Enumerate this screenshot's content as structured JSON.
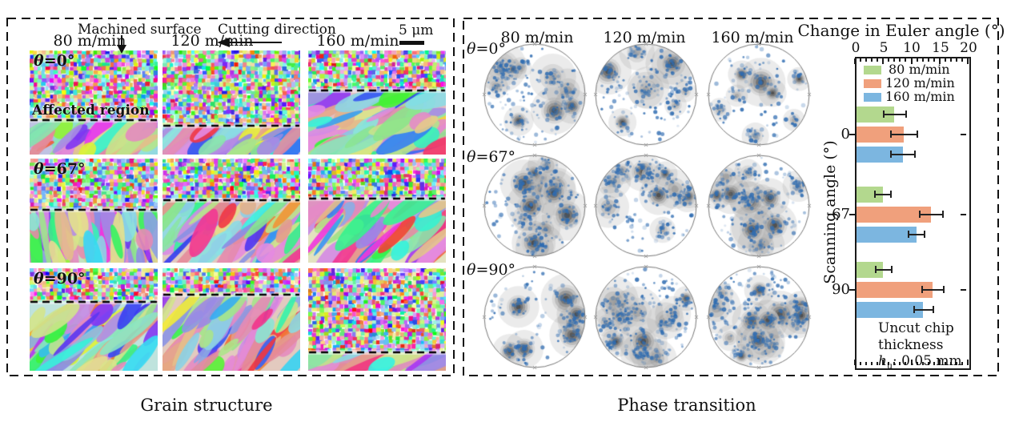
{
  "grain_panel": {
    "caption": "Grain structure",
    "machined_surface_label": "Machined surface",
    "cutting_direction_label": "Cutting direction",
    "scale_label": "5 μm",
    "affected_region_label": "Affected region",
    "column_headers": [
      "80 m/min",
      "120 m/min",
      "160 m/min"
    ],
    "row_labels": [
      {
        "sym": "θ",
        "rest": "=0°"
      },
      {
        "sym": "θ",
        "rest": "=67°"
      },
      {
        "sym": "θ",
        "rest": "=90°"
      }
    ],
    "affected_line_fracs": [
      [
        0.67,
        0.72,
        0.385
      ],
      [
        0.49,
        0.4,
        0.385
      ],
      [
        0.33,
        0.26,
        0.82
      ]
    ],
    "coarse_grain_angles_deg": [
      [
        -40,
        -35,
        -25
      ],
      [
        80,
        -50,
        -40
      ],
      [
        -45,
        -50,
        -30
      ]
    ]
  },
  "phase_panel": {
    "caption": "Phase transition",
    "column_headers": [
      "80 m/min",
      "120 m/min",
      "160 m/min"
    ],
    "row_labels": [
      {
        "sym": "θ",
        "rest": "=0°"
      },
      {
        "sym": "θ",
        "rest": "=67°"
      },
      {
        "sym": "θ",
        "rest": "=90°"
      }
    ],
    "dot_color": "#2f6cb1",
    "contour_color": "#555555",
    "dot_densities": [
      [
        230,
        210,
        150
      ],
      [
        260,
        250,
        270
      ],
      [
        190,
        320,
        320
      ]
    ],
    "blob_counts": [
      [
        10,
        9,
        8
      ],
      [
        13,
        12,
        13
      ],
      [
        7,
        15,
        15
      ]
    ]
  },
  "chart_data": {
    "type": "bar",
    "orientation": "horizontal",
    "title": "Change in Euler angle (°)",
    "ylabel": "Scanning angle (°)",
    "categories": [
      "0",
      "67",
      "90"
    ],
    "series": [
      {
        "name": "80 m/min",
        "color": "#b3d88e",
        "values": [
          7.0,
          4.9,
          5.0
        ],
        "errors": [
          2.1,
          1.5,
          1.5
        ]
      },
      {
        "name": "120 m/min",
        "color": "#f0a07c",
        "values": [
          8.6,
          13.5,
          13.8
        ],
        "errors": [
          2.4,
          2.1,
          2.0
        ]
      },
      {
        "name": "160 m/min",
        "color": "#7cb6e0",
        "values": [
          8.5,
          10.9,
          12.1
        ],
        "errors": [
          2.2,
          1.5,
          1.8
        ]
      }
    ],
    "xlim": [
      0,
      20
    ],
    "xticks": [
      0,
      5,
      10,
      15,
      20
    ],
    "axis_position": "top",
    "grid": false,
    "legend_position": "top-inside",
    "note": {
      "line1": "Uncut chip",
      "line2": "thickness",
      "h": "h",
      "sub": "u",
      "rest": ": 0.05 mm"
    }
  }
}
